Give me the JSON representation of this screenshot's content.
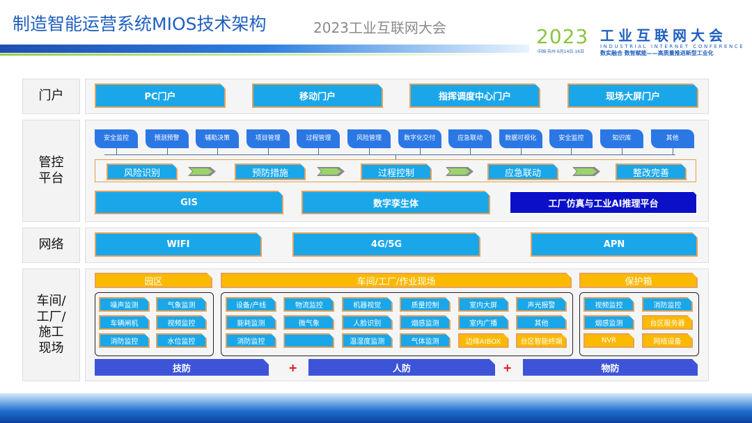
{
  "title": "制造智能运营系统MIOS技术架构",
  "logo": {
    "year": "2023",
    "location_date": "中国·苏州  6月14日-16日",
    "name_cn": "工业互联网大会",
    "name_en": "INDUSTRIAL INTERNET CONFERENCE",
    "slogan": "数实融合  数智赋能——高质量推进新型工业化"
  },
  "watermark": "2023工业互联网大会",
  "sections": {
    "portal": {
      "label": "门户",
      "items": [
        "PC门户",
        "移动门户",
        "指挥调度中心门户",
        "现场大屏门户"
      ]
    },
    "control": {
      "label": "管控\n平台",
      "tags": [
        "安全监控",
        "预测预警",
        "辅助决策",
        "项目管理",
        "过程管理",
        "风险管理",
        "数字化交付",
        "应急联动",
        "数据可视化",
        "安全监控",
        "知识库",
        "其他"
      ],
      "process": [
        "风险识别",
        "预防措施",
        "过程控制",
        "应急联动",
        "整改完善"
      ],
      "platforms": [
        "GIS",
        "数字孪生体",
        "工厂仿真与工业AI推理平台"
      ]
    },
    "network": {
      "label": "网络",
      "items": [
        "WIFI",
        "4G/5G",
        "APN"
      ]
    },
    "workshop": {
      "label": "车间/\n工厂/\n施工\n现场",
      "headers": [
        "园区",
        "车间/工厂/作业现场",
        "保护箱"
      ],
      "park": [
        "噪声监测",
        "气象监测",
        "车辆闸机",
        "视频监控",
        "消防监控",
        "水位监控"
      ],
      "plant": [
        "设备/产线",
        "物流监控",
        "机器视觉",
        "质量控制",
        "室内大屏",
        "声光报警",
        "能耗监测",
        "微气象",
        "人脸识别",
        "烟感监测",
        "室内广播",
        "其他",
        "消防监控",
        "",
        "温湿度监测",
        "气体监测",
        "边缘AIBOX",
        "台区智能终端"
      ],
      "box": [
        "视频监控",
        "消防监控",
        "烟感监测",
        "台区服务器",
        "NVR",
        "网络设备"
      ],
      "defense": [
        "技防",
        "人防",
        "物防"
      ]
    }
  },
  "colors": {
    "blue_tab": "#19a7ea",
    "yellow_tab": "#fbb900",
    "dark_tab": "#0b10c8",
    "tag": "#2b78e4",
    "title": "#1f5fbf"
  }
}
